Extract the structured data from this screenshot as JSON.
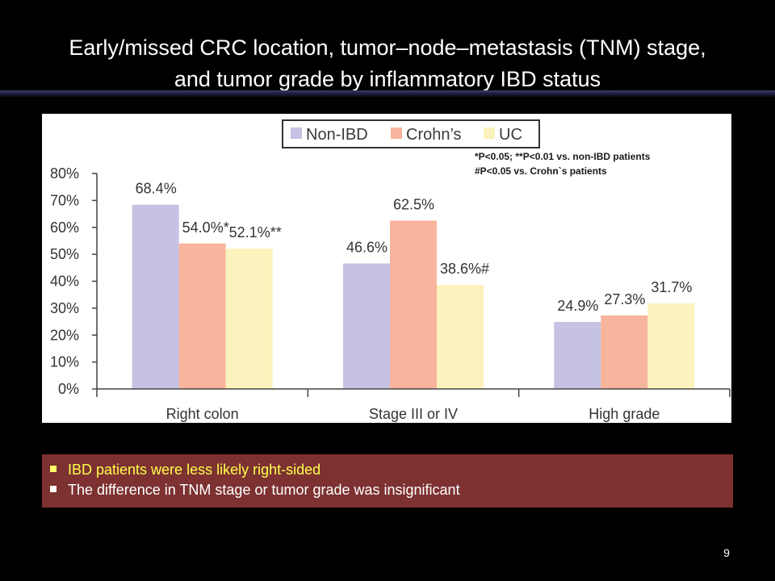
{
  "slide": {
    "title_line1": "Early/missed CRC location, tumor–node–metastasis (TNM) stage,",
    "title_line2": "and tumor grade by inflammatory IBD status",
    "page_number": "9"
  },
  "summary": {
    "bullets": [
      "IBD patients were less likely right-sided",
      "The difference in TNM stage or tumor grade was insignificant"
    ]
  },
  "colors": {
    "non_ibd": "#c5c2e3",
    "crohns": "#f8b49c",
    "uc": "#fbf2bd",
    "summary_box": "#7d3131",
    "highlight_text": "#ffff4d"
  },
  "chart_data": {
    "type": "bar",
    "categories": [
      "Right colon",
      "Stage III or IV",
      "High grade"
    ],
    "series": [
      {
        "name": "Non-IBD",
        "values": [
          68.4,
          46.6,
          24.9
        ],
        "labels": [
          "68.4%",
          "46.6%",
          "24.9%"
        ]
      },
      {
        "name": "Crohn’s",
        "values": [
          54.0,
          62.5,
          27.3
        ],
        "labels": [
          "54.0%*",
          "62.5%",
          "27.3%"
        ]
      },
      {
        "name": "UC",
        "values": [
          52.1,
          38.6,
          31.7
        ],
        "labels": [
          "52.1%**",
          "38.6%#",
          "31.7%"
        ]
      }
    ],
    "ylim": [
      0,
      80
    ],
    "yticks": [
      "0%",
      "10%",
      "20%",
      "30%",
      "40%",
      "50%",
      "60%",
      "70%",
      "80%"
    ],
    "legend_position": "top-center",
    "grid": false,
    "notes": [
      "*P<0.05; **P<0.01 vs. non-IBD patients",
      "#P<0.05 vs. Crohn`s patients"
    ]
  }
}
